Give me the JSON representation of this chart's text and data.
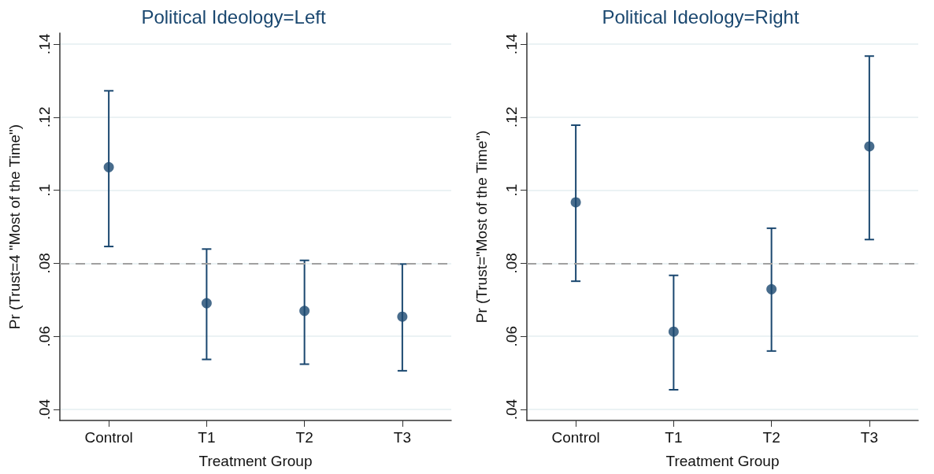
{
  "chart_data": [
    {
      "type": "scatter",
      "title": "Political Ideology=Left",
      "xlabel": "Treatment Group",
      "ylabel": "Pr (Trust=4 \"Most of the Time\")",
      "categories": [
        "Control",
        "T1",
        "T2",
        "T3"
      ],
      "series": [
        {
          "color": "#1a476f",
          "values": [
            0.1063,
            0.0691,
            0.067,
            0.0654
          ],
          "errors": [
            [
              0.0846,
              0.1272
            ],
            [
              0.0537,
              0.0839
            ],
            [
              0.0524,
              0.0808
            ],
            [
              0.0506,
              0.0798
            ]
          ]
        }
      ],
      "ylim": [
        0.037,
        0.143
      ],
      "yticks": [
        {
          "value": 0.04,
          "label": ".04"
        },
        {
          "value": 0.06,
          "label": ".06"
        },
        {
          "value": 0.08,
          "label": ".08"
        },
        {
          "value": 0.1,
          "label": ".1"
        },
        {
          "value": 0.12,
          "label": ".12"
        },
        {
          "value": 0.14,
          "label": ".14"
        }
      ],
      "ref_lines": [
        {
          "axis": "y",
          "value": 0.08,
          "color": "#a0a0a0",
          "line_style": "dashed"
        }
      ],
      "grid": "y",
      "marker": "circle"
    },
    {
      "type": "scatter",
      "title": "Political Ideology=Right",
      "xlabel": "Treatment Group",
      "ylabel": "Pr (Trust=\"Most of the Time\")",
      "categories": [
        "Control",
        "T1",
        "T2",
        "T3"
      ],
      "series": [
        {
          "color": "#1a476f",
          "values": [
            0.0967,
            0.0613,
            0.0729,
            0.112
          ],
          "errors": [
            [
              0.0751,
              0.1178
            ],
            [
              0.0454,
              0.0767
            ],
            [
              0.056,
              0.0896
            ],
            [
              0.0865,
              0.1367
            ]
          ]
        }
      ],
      "ylim": [
        0.037,
        0.143
      ],
      "yticks": [
        {
          "value": 0.04,
          "label": ".04"
        },
        {
          "value": 0.06,
          "label": ".06"
        },
        {
          "value": 0.08,
          "label": ".08"
        },
        {
          "value": 0.1,
          "label": ".1"
        },
        {
          "value": 0.12,
          "label": ".12"
        },
        {
          "value": 0.14,
          "label": ".14"
        }
      ],
      "ref_lines": [
        {
          "axis": "y",
          "value": 0.08,
          "color": "#a0a0a0",
          "line_style": "dashed"
        }
      ],
      "grid": "y",
      "marker": "circle"
    }
  ]
}
